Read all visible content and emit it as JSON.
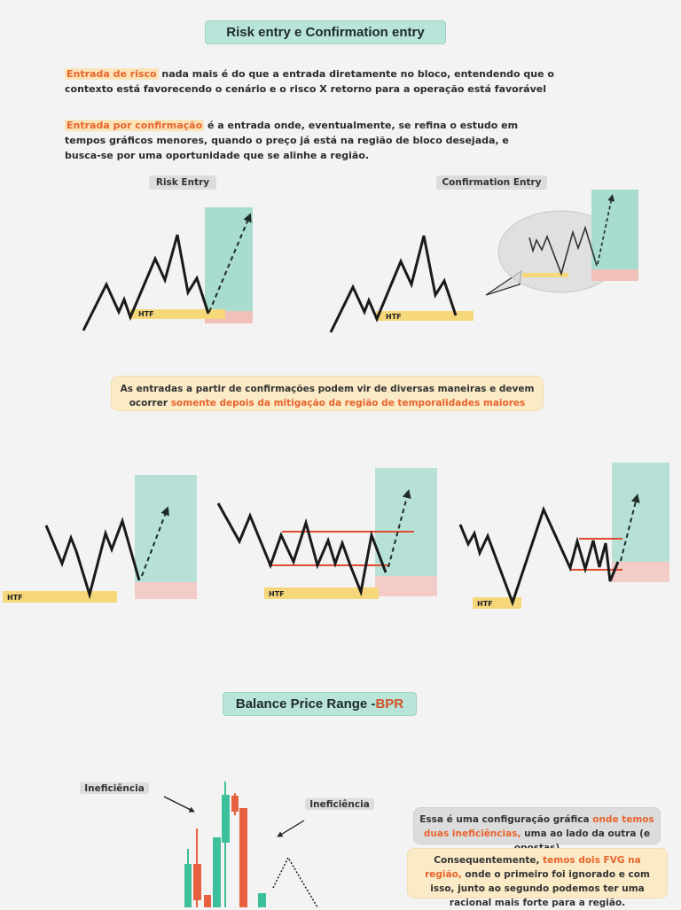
{
  "header": {
    "title": "Risk entry e Confirmation entry"
  },
  "para1": {
    "highlight": "Entrada de risco",
    "line1": " nada mais é do que a entrada diretamente no bloco, entendendo que o",
    "line2": "contexto está favorecendo o cenário e o risco X retorno para a operação está favorável"
  },
  "para2": {
    "highlight": "Entrada por confirmação",
    "line1": " é a entrada onde, eventualmente, se refina o estudo em",
    "line2": "tempos gráficos menores, quando o preço já está na região de bloco desejada, e",
    "line3": "busca-se por uma oportunidade que se alinhe a região."
  },
  "labels": {
    "risk_entry": "Risk Entry",
    "confirmation_entry": "Confirmation Entry",
    "htf": "HTF"
  },
  "note1": {
    "line1": "As entradas a partir de confirmações podem vir de diversas maneiras e devem",
    "line2_prefix": "ocorrer ",
    "line2_highlight": "somente depois da mitigação da região de temporalidades maiores"
  },
  "bpr": {
    "title_prefix": "Balance Price Range - ",
    "title_accent": "BPR"
  },
  "ineficiencia": "Ineficiência",
  "note2": {
    "prefix": "Essa é uma configuração gráfica ",
    "highlight": "onde temos duas ineficiências,",
    "suffix": " uma ao lado da outra (e opostas)"
  },
  "note3": {
    "prefix": "Consequentemente, ",
    "highlight": "temos dois FVG na região,",
    "suffix": " onde o primeiro foi ignorado e com isso, junto ao segundo podemos ter uma racional mais forte para a região."
  },
  "colors": {
    "green": "#a8dccf",
    "red": "#f2c0bb",
    "yellow": "#f6d77a",
    "orange": "#e8642e",
    "line": "#1a1a1a"
  }
}
